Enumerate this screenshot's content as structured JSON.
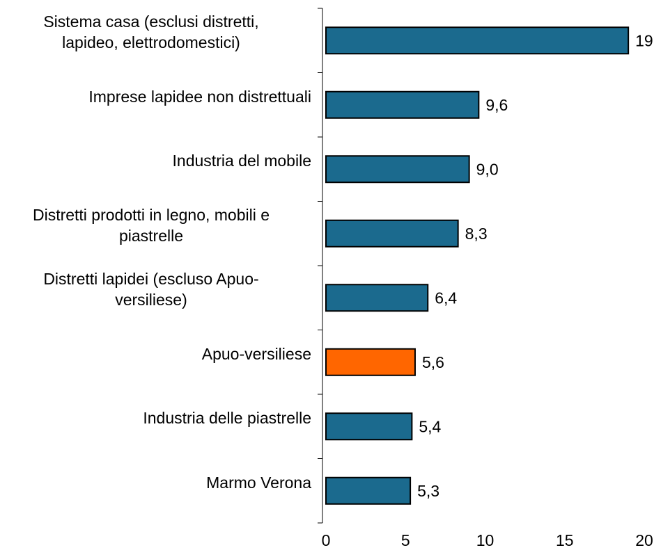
{
  "chart_data": {
    "type": "barh",
    "categories": [
      "Sistema casa (esclusi distretti,\nlapideo, elettrodomestici)",
      "Imprese lapidee non distrettuali",
      "Industria del mobile",
      "Distretti prodotti in legno, mobili e\npiastrelle",
      "Distretti lapidei (escluso Apuo-\nversiliese)",
      "Apuo-versiliese",
      "Industria delle piastrelle",
      "Marmo Verona"
    ],
    "values": [
      19,
      9.6,
      9.0,
      8.3,
      6.4,
      5.6,
      5.4,
      5.3
    ],
    "value_labels": [
      "19",
      "9,6",
      "9,0",
      "8,3",
      "6,4",
      "5,6",
      "5,4",
      "5,3"
    ],
    "colors": [
      "#1b6a8e",
      "#1b6a8e",
      "#1b6a8e",
      "#1b6a8e",
      "#1b6a8e",
      "#ff6600",
      "#1b6a8e",
      "#1b6a8e"
    ],
    "xlim": [
      0,
      20
    ],
    "xticks": [
      0,
      5,
      10,
      15,
      20
    ]
  }
}
